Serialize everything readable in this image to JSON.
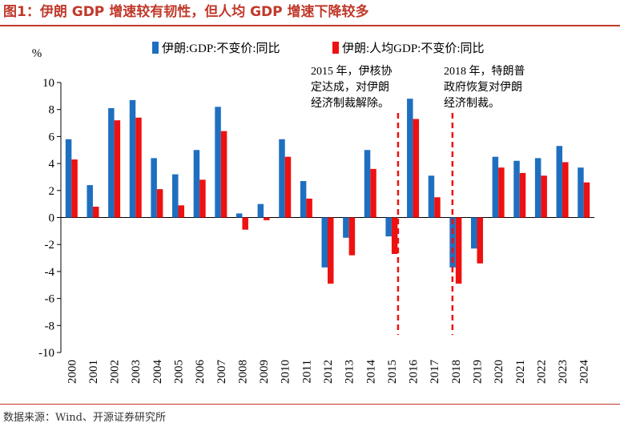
{
  "title": "图1：伊朗 GDP 增速较有韧性，但人均 GDP 增速下降较多",
  "source": "数据来源：Wind、开源证券研究所",
  "colors": {
    "series1": "#1f6fc0",
    "series2": "#ee1111",
    "title": "#c0392b",
    "annotation_line": "#ee1111"
  },
  "chart_data": {
    "type": "bar",
    "ylabel": "%",
    "ylim": [
      -10,
      10
    ],
    "yticks": [
      -10,
      -8,
      -6,
      -4,
      -2,
      0,
      2,
      4,
      6,
      8,
      10
    ],
    "legend_position": "top",
    "grid": false,
    "categories": [
      "2000",
      "2001",
      "2002",
      "2003",
      "2004",
      "2005",
      "2006",
      "2007",
      "2008",
      "2009",
      "2010",
      "2011",
      "2012",
      "2013",
      "2014",
      "2015",
      "2016",
      "2017",
      "2018",
      "2019",
      "2020",
      "2021",
      "2022",
      "2023",
      "2024"
    ],
    "series": [
      {
        "name": "伊朗:GDP:不变价:同比",
        "values": [
          5.8,
          2.4,
          8.1,
          8.7,
          4.4,
          3.2,
          5.0,
          8.2,
          0.3,
          1.0,
          5.8,
          2.7,
          -3.7,
          -1.5,
          5.0,
          -1.4,
          8.8,
          3.1,
          -3.7,
          -2.3,
          4.5,
          4.2,
          4.4,
          5.3,
          3.7
        ]
      },
      {
        "name": "伊朗:人均GDP:不变价:同比",
        "values": [
          4.3,
          0.8,
          7.2,
          7.4,
          2.1,
          0.9,
          2.8,
          6.4,
          -0.9,
          -0.2,
          4.5,
          1.4,
          -4.9,
          -2.8,
          3.6,
          -2.7,
          7.3,
          1.5,
          -4.9,
          -3.4,
          3.7,
          3.3,
          3.1,
          4.1,
          2.6
        ]
      }
    ],
    "annotations": [
      {
        "category": "2015",
        "lines": [
          "2015 年，伊核协",
          "定达成，对伊朗",
          "经济制裁解除。"
        ]
      },
      {
        "category": "2018",
        "lines": [
          "2018 年，特朗普",
          "政府恢复对伊朗",
          "经济制裁。"
        ]
      }
    ]
  }
}
